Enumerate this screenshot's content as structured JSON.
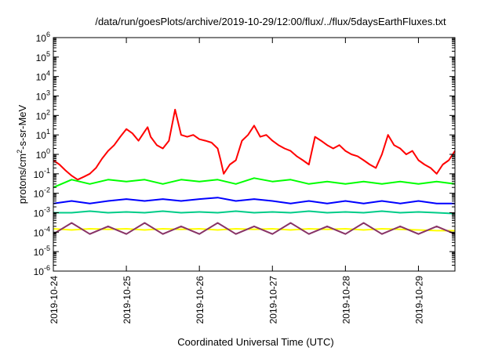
{
  "chart_data": {
    "type": "line",
    "title": "/data/run/goesPlots/archive/2019-10-29/12:00/flux/../flux/5daysEarthFluxes.txt",
    "xlabel": "Coordinated Universal Time (UTC)",
    "ylabel": "protons/cm²-s-sr-MeV",
    "ylabel_parts": {
      "before": "protons/cm",
      "sup": "2",
      "after": "-s-sr-MeV"
    },
    "xlim": [
      "2019-10-24T00:00",
      "2019-10-29T12:00"
    ],
    "ylim": [
      1e-06,
      1000000.0
    ],
    "yscale": "log",
    "grid": false,
    "x_ticks": [
      "2019-10-24",
      "2019-10-25",
      "2019-10-26",
      "2019-10-27",
      "2019-10-28",
      "2019-10-29"
    ],
    "y_ticks": [
      {
        "base": "10",
        "exp": "6"
      },
      {
        "base": "10",
        "exp": "5"
      },
      {
        "base": "10",
        "exp": "4"
      },
      {
        "base": "10",
        "exp": "3"
      },
      {
        "base": "10",
        "exp": "2"
      },
      {
        "base": "10",
        "exp": "1"
      },
      {
        "base": "10",
        "exp": "0"
      },
      {
        "base": "10",
        "exp": "-1"
      },
      {
        "base": "10",
        "exp": "-2"
      },
      {
        "base": "10",
        "exp": "-3"
      },
      {
        "base": "10",
        "exp": "-4"
      },
      {
        "base": "10",
        "exp": "-5"
      },
      {
        "base": "10",
        "exp": "-6"
      }
    ],
    "series": [
      {
        "color": "#ff0000",
        "x": [
          "2019-10-24T00:00",
          "2019-10-24T02:00",
          "2019-10-24T04:00",
          "2019-10-24T06:00",
          "2019-10-24T08:00",
          "2019-10-24T10:00",
          "2019-10-24T12:00",
          "2019-10-24T14:00",
          "2019-10-24T16:00",
          "2019-10-24T18:00",
          "2019-10-24T20:00",
          "2019-10-24T22:00",
          "2019-10-25T00:00",
          "2019-10-25T02:00",
          "2019-10-25T04:00",
          "2019-10-25T06:00",
          "2019-10-25T07:00",
          "2019-10-25T08:00",
          "2019-10-25T10:00",
          "2019-10-25T12:00",
          "2019-10-25T14:00",
          "2019-10-25T16:00",
          "2019-10-25T18:00",
          "2019-10-25T20:00",
          "2019-10-25T22:00",
          "2019-10-26T00:00",
          "2019-10-26T02:00",
          "2019-10-26T04:00",
          "2019-10-26T06:00",
          "2019-10-26T07:00",
          "2019-10-26T08:00",
          "2019-10-26T10:00",
          "2019-10-26T12:00",
          "2019-10-26T14:00",
          "2019-10-26T16:00",
          "2019-10-26T18:00",
          "2019-10-26T20:00",
          "2019-10-26T22:00",
          "2019-10-27T00:00",
          "2019-10-27T02:00",
          "2019-10-27T04:00",
          "2019-10-27T06:00",
          "2019-10-27T08:00",
          "2019-10-27T10:00",
          "2019-10-27T12:00",
          "2019-10-27T14:00",
          "2019-10-27T16:00",
          "2019-10-27T18:00",
          "2019-10-27T20:00",
          "2019-10-27T22:00",
          "2019-10-28T00:00",
          "2019-10-28T02:00",
          "2019-10-28T04:00",
          "2019-10-28T06:00",
          "2019-10-28T08:00",
          "2019-10-28T10:00",
          "2019-10-28T12:00",
          "2019-10-28T14:00",
          "2019-10-28T16:00",
          "2019-10-28T18:00",
          "2019-10-28T20:00",
          "2019-10-28T22:00",
          "2019-10-29T00:00",
          "2019-10-29T02:00",
          "2019-10-29T04:00",
          "2019-10-29T06:00",
          "2019-10-29T08:00",
          "2019-10-29T10:00",
          "2019-10-29T12:00"
        ],
        "y": [
          0.5,
          0.3,
          0.15,
          0.08,
          0.05,
          0.07,
          0.1,
          0.2,
          0.6,
          1.5,
          3,
          8,
          20,
          12,
          5,
          15,
          25,
          8,
          3,
          2,
          5,
          200,
          10,
          8,
          10,
          6,
          5,
          4,
          2,
          0.5,
          0.1,
          0.3,
          0.5,
          5,
          10,
          30,
          8,
          10,
          5,
          3,
          2,
          1.5,
          0.8,
          0.5,
          0.3,
          8,
          5,
          3,
          2,
          3,
          1.5,
          1,
          0.8,
          0.5,
          0.3,
          0.2,
          1,
          10,
          3,
          2,
          1,
          1.5,
          0.5,
          0.3,
          0.2,
          0.1,
          0.3,
          0.5,
          1.5
        ]
      },
      {
        "color": "#00ff00",
        "x": [
          "2019-10-24T00:00",
          "2019-10-24T06:00",
          "2019-10-24T12:00",
          "2019-10-24T18:00",
          "2019-10-25T00:00",
          "2019-10-25T06:00",
          "2019-10-25T12:00",
          "2019-10-25T18:00",
          "2019-10-26T00:00",
          "2019-10-26T06:00",
          "2019-10-26T12:00",
          "2019-10-26T18:00",
          "2019-10-27T00:00",
          "2019-10-27T06:00",
          "2019-10-27T12:00",
          "2019-10-27T18:00",
          "2019-10-28T00:00",
          "2019-10-28T06:00",
          "2019-10-28T12:00",
          "2019-10-28T18:00",
          "2019-10-29T00:00",
          "2019-10-29T06:00",
          "2019-10-29T12:00"
        ],
        "y": [
          0.02,
          0.05,
          0.03,
          0.05,
          0.04,
          0.05,
          0.03,
          0.05,
          0.04,
          0.05,
          0.03,
          0.06,
          0.04,
          0.05,
          0.03,
          0.04,
          0.03,
          0.04,
          0.03,
          0.04,
          0.03,
          0.04,
          0.03
        ]
      },
      {
        "color": "#0000ff",
        "x": [
          "2019-10-24T00:00",
          "2019-10-24T06:00",
          "2019-10-24T12:00",
          "2019-10-24T18:00",
          "2019-10-25T00:00",
          "2019-10-25T06:00",
          "2019-10-25T12:00",
          "2019-10-25T18:00",
          "2019-10-26T00:00",
          "2019-10-26T06:00",
          "2019-10-26T12:00",
          "2019-10-26T18:00",
          "2019-10-27T00:00",
          "2019-10-27T06:00",
          "2019-10-27T12:00",
          "2019-10-27T18:00",
          "2019-10-28T00:00",
          "2019-10-28T06:00",
          "2019-10-28T12:00",
          "2019-10-28T18:00",
          "2019-10-29T00:00",
          "2019-10-29T06:00",
          "2019-10-29T12:00"
        ],
        "y": [
          0.003,
          0.004,
          0.003,
          0.004,
          0.005,
          0.004,
          0.005,
          0.004,
          0.005,
          0.006,
          0.004,
          0.005,
          0.004,
          0.003,
          0.004,
          0.003,
          0.004,
          0.003,
          0.004,
          0.003,
          0.004,
          0.003,
          0.003
        ]
      },
      {
        "color": "#00cc88",
        "x": [
          "2019-10-24T00:00",
          "2019-10-24T06:00",
          "2019-10-24T12:00",
          "2019-10-24T18:00",
          "2019-10-25T00:00",
          "2019-10-25T06:00",
          "2019-10-25T12:00",
          "2019-10-25T18:00",
          "2019-10-26T00:00",
          "2019-10-26T06:00",
          "2019-10-26T12:00",
          "2019-10-26T18:00",
          "2019-10-27T00:00",
          "2019-10-27T06:00",
          "2019-10-27T12:00",
          "2019-10-27T18:00",
          "2019-10-28T00:00",
          "2019-10-28T06:00",
          "2019-10-28T12:00",
          "2019-10-28T18:00",
          "2019-10-29T00:00",
          "2019-10-29T06:00",
          "2019-10-29T12:00"
        ],
        "y": [
          0.001,
          0.001,
          0.0012,
          0.001,
          0.0011,
          0.001,
          0.0012,
          0.001,
          0.0011,
          0.001,
          0.0012,
          0.001,
          0.0011,
          0.001,
          0.0012,
          0.001,
          0.0011,
          0.001,
          0.0012,
          0.001,
          0.0011,
          0.001,
          0.0009
        ]
      },
      {
        "color": "#ffff00",
        "x": [
          "2019-10-24T00:00",
          "2019-10-24T06:00",
          "2019-10-24T12:00",
          "2019-10-24T18:00",
          "2019-10-25T00:00",
          "2019-10-25T06:00",
          "2019-10-25T12:00",
          "2019-10-25T18:00",
          "2019-10-26T00:00",
          "2019-10-26T06:00",
          "2019-10-26T12:00",
          "2019-10-26T18:00",
          "2019-10-27T00:00",
          "2019-10-27T06:00",
          "2019-10-27T12:00",
          "2019-10-27T18:00",
          "2019-10-28T00:00",
          "2019-10-28T06:00",
          "2019-10-28T12:00",
          "2019-10-28T18:00",
          "2019-10-29T00:00",
          "2019-10-29T06:00",
          "2019-10-29T12:00"
        ],
        "y": [
          0.00015,
          0.00013,
          0.00015,
          0.00014,
          0.00015,
          0.00013,
          0.00015,
          0.00014,
          0.00015,
          0.00013,
          0.00015,
          0.00014,
          0.00015,
          0.00013,
          0.00015,
          0.00014,
          0.00015,
          0.00013,
          0.00015,
          0.00014,
          0.00013,
          0.00012,
          0.00012
        ]
      },
      {
        "color": "#883366",
        "x": [
          "2019-10-24T00:00",
          "2019-10-24T06:00",
          "2019-10-24T12:00",
          "2019-10-24T18:00",
          "2019-10-25T00:00",
          "2019-10-25T06:00",
          "2019-10-25T12:00",
          "2019-10-25T18:00",
          "2019-10-26T00:00",
          "2019-10-26T06:00",
          "2019-10-26T12:00",
          "2019-10-26T18:00",
          "2019-10-27T00:00",
          "2019-10-27T06:00",
          "2019-10-27T12:00",
          "2019-10-27T18:00",
          "2019-10-28T00:00",
          "2019-10-28T06:00",
          "2019-10-28T12:00",
          "2019-10-28T18:00",
          "2019-10-29T00:00",
          "2019-10-29T06:00",
          "2019-10-29T12:00"
        ],
        "y": [
          8e-05,
          0.0003,
          8e-05,
          0.0002,
          8e-05,
          0.0003,
          8e-05,
          0.0002,
          8e-05,
          0.0003,
          8e-05,
          0.0002,
          8e-05,
          0.0003,
          8e-05,
          0.0002,
          8e-05,
          0.0003,
          8e-05,
          0.0002,
          8e-05,
          0.0002,
          8e-05
        ]
      }
    ]
  }
}
